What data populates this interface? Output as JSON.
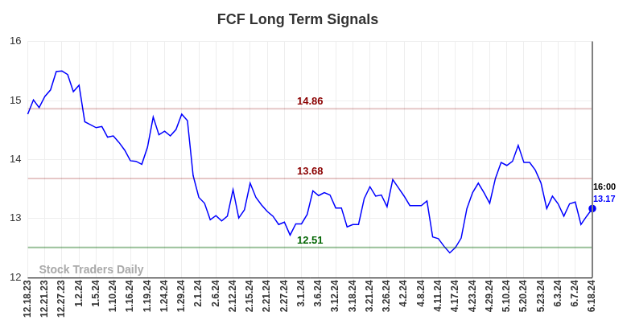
{
  "chart_data": {
    "type": "line",
    "title": "FCF Long Term Signals",
    "watermark": "Stock Traders Daily",
    "end_label": "16:00",
    "categories": [
      "12.18.23",
      null,
      null,
      "12.21.23",
      null,
      null,
      "12.27.23",
      null,
      null,
      "1.2.24",
      null,
      null,
      "1.5.24",
      null,
      null,
      "1.10.24",
      null,
      null,
      "1.16.24",
      null,
      null,
      "1.19.24",
      null,
      null,
      "1.24.24",
      null,
      null,
      "1.29.24",
      null,
      null,
      "2.1.24",
      null,
      null,
      "2.6.24",
      null,
      null,
      "2.12.24",
      null,
      null,
      "2.15.24",
      null,
      null,
      "2.21.24",
      null,
      null,
      "2.27.24",
      null,
      null,
      "3.1.24",
      null,
      null,
      "3.6.24",
      null,
      null,
      "3.12.24",
      null,
      null,
      "3.18.24",
      null,
      null,
      "3.21.24",
      null,
      null,
      "3.26.24",
      null,
      null,
      "4.2.24",
      null,
      null,
      "4.8.24",
      null,
      null,
      "4.11.24",
      null,
      null,
      "4.17.24",
      null,
      null,
      "4.23.24",
      null,
      null,
      "4.29.24",
      null,
      null,
      "5.10.24",
      null,
      null,
      "5.20.24",
      null,
      null,
      "5.23.24",
      null,
      null,
      "6.3.24",
      null,
      null,
      "6.7.24",
      null,
      null,
      "6.18.24"
    ],
    "values": [
      14.77,
      15.01,
      14.88,
      15.07,
      15.18,
      15.49,
      15.5,
      15.44,
      15.15,
      15.26,
      14.64,
      14.59,
      14.54,
      14.56,
      14.38,
      14.4,
      14.29,
      14.16,
      13.98,
      13.97,
      13.92,
      14.21,
      14.72,
      14.42,
      14.48,
      14.4,
      14.51,
      14.77,
      14.66,
      13.73,
      13.36,
      13.26,
      12.98,
      13.05,
      12.96,
      13.04,
      13.49,
      13.01,
      13.15,
      13.6,
      13.36,
      13.23,
      13.12,
      13.04,
      12.9,
      12.94,
      12.72,
      12.91,
      12.91,
      13.07,
      13.47,
      13.39,
      13.44,
      13.4,
      13.18,
      13.18,
      12.86,
      12.9,
      12.9,
      13.34,
      13.54,
      13.38,
      13.4,
      13.2,
      13.66,
      13.52,
      13.38,
      13.22,
      13.22,
      13.22,
      13.3,
      12.69,
      12.66,
      12.53,
      12.42,
      12.51,
      12.67,
      13.17,
      13.44,
      13.6,
      13.44,
      13.26,
      13.68,
      13.95,
      13.9,
      13.97,
      14.24,
      13.95,
      13.95,
      13.82,
      13.6,
      13.17,
      13.38,
      13.25,
      13.04,
      13.25,
      13.28,
      12.9,
      13.04,
      13.17
    ],
    "color": "#0000ff",
    "reference_lines": [
      {
        "value": 14.86,
        "color": "#8b0000"
      },
      {
        "value": 13.68,
        "color": "#8b0000"
      },
      {
        "value": 12.51,
        "color": "#006400"
      }
    ],
    "ylim": [
      12,
      16
    ],
    "yticks": [
      12,
      13,
      14,
      15,
      16
    ],
    "grid": true
  }
}
